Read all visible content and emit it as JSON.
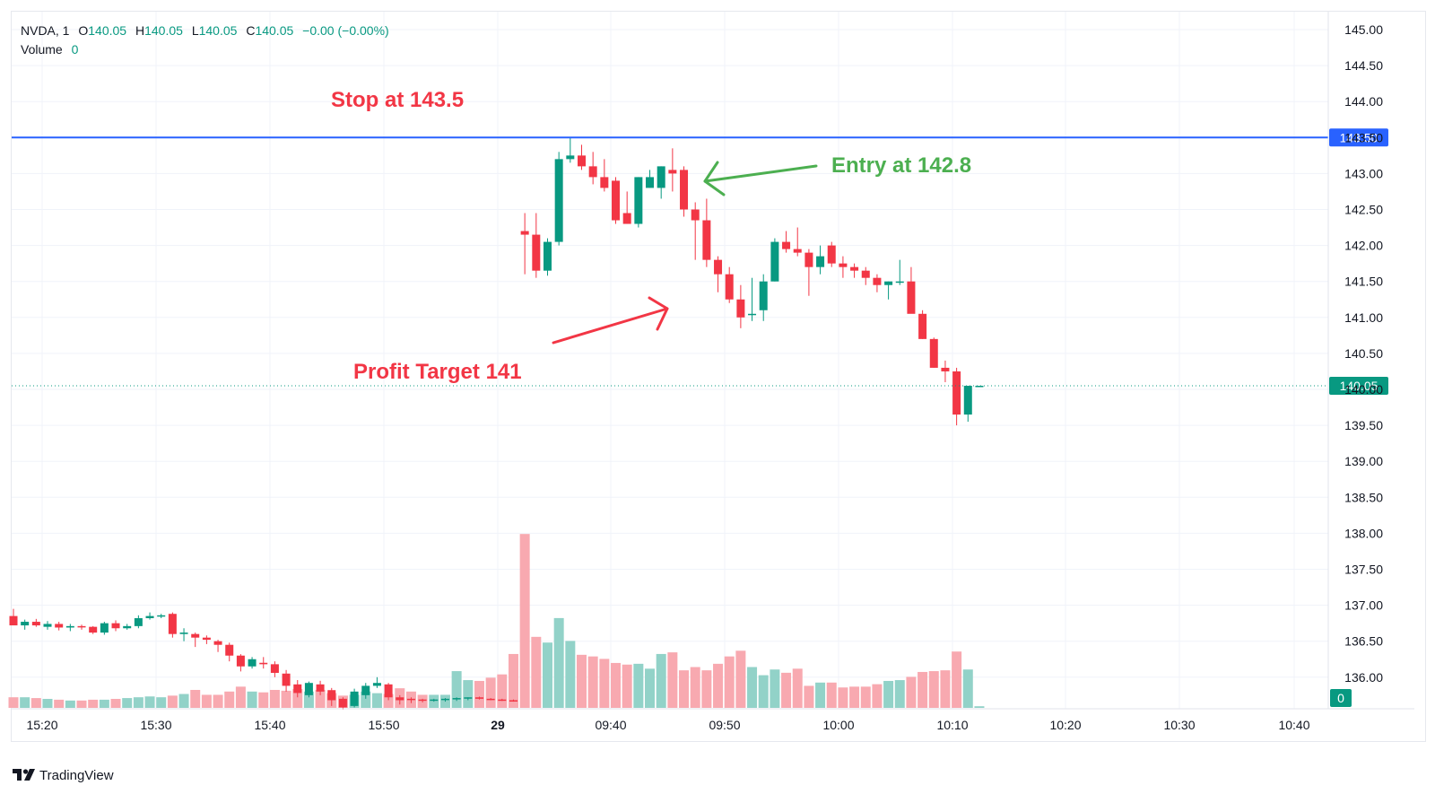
{
  "legend": {
    "symbol": "NVDA, 1",
    "o_label": "O",
    "o_value": "140.05",
    "h_label": "H",
    "h_value": "140.05",
    "l_label": "L",
    "l_value": "140.05",
    "c_label": "C",
    "c_value": "140.05",
    "change": "−0.00 (−0.00%)",
    "volume_label": "Volume",
    "volume_value": "0"
  },
  "annotations": {
    "stop": "Stop at 143.5",
    "entry": "Entry at 142.8",
    "target": "Profit Target 141"
  },
  "brand": {
    "name": "TradingView",
    "icon": "tradingview-logo-icon"
  },
  "colors": {
    "up": "#089981",
    "down": "#f23645",
    "vol_up": "#92d2c8",
    "vol_down": "#f8a9b0",
    "stop_line": "#2962ff",
    "price_line": "#089981",
    "note_red": "#f23645",
    "note_green": "#4caf50"
  },
  "chart_data": {
    "type": "candlestick",
    "symbol": "NVDA",
    "interval": "1",
    "y_ticks": [
      "145.00",
      "144.50",
      "144.00",
      "143.50",
      "143.00",
      "142.50",
      "142.00",
      "141.50",
      "141.00",
      "140.50",
      "140.00",
      "139.50",
      "139.00",
      "138.50",
      "138.00",
      "137.50",
      "137.00",
      "136.50",
      "136.00"
    ],
    "x_ticks": [
      "15:20",
      "15:30",
      "15:40",
      "15:50",
      "29",
      "09:40",
      "09:50",
      "10:00",
      "10:10",
      "10:20",
      "10:30",
      "10:40"
    ],
    "ylim": [
      135.6,
      145.3
    ],
    "stop_level": 143.5,
    "stop_label": "143.50",
    "last_price": 140.05,
    "last_label": "140.05",
    "volume_badge": "0",
    "grid": true,
    "candles": [
      {
        "o": 136.85,
        "h": 136.95,
        "l": 136.72,
        "c": 136.72,
        "v": 1.3
      },
      {
        "o": 136.72,
        "h": 136.8,
        "l": 136.66,
        "c": 136.77,
        "v": 1.3
      },
      {
        "o": 136.77,
        "h": 136.81,
        "l": 136.7,
        "c": 136.72,
        "v": 1.2
      },
      {
        "o": 136.7,
        "h": 136.78,
        "l": 136.66,
        "c": 136.74,
        "v": 1.1
      },
      {
        "o": 136.74,
        "h": 136.77,
        "l": 136.65,
        "c": 136.69,
        "v": 1.0
      },
      {
        "o": 136.69,
        "h": 136.74,
        "l": 136.64,
        "c": 136.71,
        "v": 0.9
      },
      {
        "o": 136.71,
        "h": 136.73,
        "l": 136.66,
        "c": 136.7,
        "v": 0.9
      },
      {
        "o": 136.7,
        "h": 136.71,
        "l": 136.6,
        "c": 136.62,
        "v": 1.0
      },
      {
        "o": 136.62,
        "h": 136.77,
        "l": 136.59,
        "c": 136.75,
        "v": 1.0
      },
      {
        "o": 136.75,
        "h": 136.79,
        "l": 136.64,
        "c": 136.68,
        "v": 1.1
      },
      {
        "o": 136.68,
        "h": 136.74,
        "l": 136.66,
        "c": 136.71,
        "v": 1.2
      },
      {
        "o": 136.71,
        "h": 136.86,
        "l": 136.68,
        "c": 136.82,
        "v": 1.3
      },
      {
        "o": 136.82,
        "h": 136.9,
        "l": 136.8,
        "c": 136.85,
        "v": 1.4
      },
      {
        "o": 136.85,
        "h": 136.88,
        "l": 136.82,
        "c": 136.86,
        "v": 1.3
      },
      {
        "o": 136.88,
        "h": 136.9,
        "l": 136.55,
        "c": 136.6,
        "v": 1.5
      },
      {
        "o": 136.6,
        "h": 136.68,
        "l": 136.5,
        "c": 136.62,
        "v": 1.7
      },
      {
        "o": 136.6,
        "h": 136.62,
        "l": 136.42,
        "c": 136.55,
        "v": 2.2
      },
      {
        "o": 136.55,
        "h": 136.58,
        "l": 136.46,
        "c": 136.52,
        "v": 1.6
      },
      {
        "o": 136.5,
        "h": 136.52,
        "l": 136.35,
        "c": 136.45,
        "v": 1.6
      },
      {
        "o": 136.45,
        "h": 136.48,
        "l": 136.22,
        "c": 136.3,
        "v": 2.0
      },
      {
        "o": 136.3,
        "h": 136.32,
        "l": 136.08,
        "c": 136.15,
        "v": 2.6
      },
      {
        "o": 136.15,
        "h": 136.28,
        "l": 136.12,
        "c": 136.25,
        "v": 2.0
      },
      {
        "o": 136.2,
        "h": 136.28,
        "l": 136.12,
        "c": 136.18,
        "v": 1.9
      },
      {
        "o": 136.18,
        "h": 136.22,
        "l": 136.0,
        "c": 136.06,
        "v": 2.2
      },
      {
        "o": 136.05,
        "h": 136.1,
        "l": 135.8,
        "c": 135.88,
        "v": 2.1
      },
      {
        "o": 135.9,
        "h": 135.96,
        "l": 135.72,
        "c": 135.78,
        "v": 2.3
      },
      {
        "o": 135.75,
        "h": 135.94,
        "l": 135.72,
        "c": 135.92,
        "v": 2.0
      },
      {
        "o": 135.9,
        "h": 135.95,
        "l": 135.75,
        "c": 135.8,
        "v": 2.2
      },
      {
        "o": 135.82,
        "h": 135.85,
        "l": 135.6,
        "c": 135.68,
        "v": 1.8
      },
      {
        "o": 135.7,
        "h": 135.72,
        "l": 135.55,
        "c": 135.58,
        "v": 1.5
      },
      {
        "o": 135.6,
        "h": 135.84,
        "l": 135.58,
        "c": 135.8,
        "v": 1.6
      },
      {
        "o": 135.75,
        "h": 135.92,
        "l": 135.7,
        "c": 135.88,
        "v": 2.0
      },
      {
        "o": 135.88,
        "h": 136.0,
        "l": 135.85,
        "c": 135.92,
        "v": 1.8
      },
      {
        "o": 135.9,
        "h": 135.92,
        "l": 135.68,
        "c": 135.72,
        "v": 1.7
      },
      {
        "o": 135.72,
        "h": 135.75,
        "l": 135.62,
        "c": 135.68,
        "v": 2.4
      },
      {
        "o": 135.7,
        "h": 135.72,
        "l": 135.64,
        "c": 135.69,
        "v": 2.0
      },
      {
        "o": 135.69,
        "h": 135.7,
        "l": 135.65,
        "c": 135.68,
        "v": 1.6
      },
      {
        "o": 135.68,
        "h": 135.7,
        "l": 135.66,
        "c": 135.69,
        "v": 1.6
      },
      {
        "o": 135.69,
        "h": 135.71,
        "l": 135.66,
        "c": 135.7,
        "v": 1.6
      },
      {
        "o": 135.7,
        "h": 135.72,
        "l": 135.67,
        "c": 135.71,
        "v": 4.5
      },
      {
        "o": 135.71,
        "h": 135.72,
        "l": 135.68,
        "c": 135.72,
        "v": 3.4
      },
      {
        "o": 135.72,
        "h": 135.73,
        "l": 135.69,
        "c": 135.7,
        "v": 3.3
      },
      {
        "o": 135.7,
        "h": 135.71,
        "l": 135.68,
        "c": 135.69,
        "v": 3.7
      },
      {
        "o": 135.69,
        "h": 135.7,
        "l": 135.67,
        "c": 135.68,
        "v": 4.1
      },
      {
        "o": 135.68,
        "h": 135.69,
        "l": 135.66,
        "c": 135.67,
        "v": 6.6
      },
      {
        "o": 142.2,
        "h": 142.45,
        "l": 141.6,
        "c": 142.15,
        "v": 21.3
      },
      {
        "o": 142.15,
        "h": 142.45,
        "l": 141.55,
        "c": 141.65,
        "v": 8.7
      },
      {
        "o": 141.65,
        "h": 142.1,
        "l": 141.58,
        "c": 142.05,
        "v": 8.0
      },
      {
        "o": 142.05,
        "h": 143.3,
        "l": 142.0,
        "c": 143.2,
        "v": 11.0
      },
      {
        "o": 143.2,
        "h": 143.5,
        "l": 143.15,
        "c": 143.25,
        "v": 8.2
      },
      {
        "o": 143.25,
        "h": 143.4,
        "l": 143.05,
        "c": 143.1,
        "v": 6.5
      },
      {
        "o": 143.1,
        "h": 143.3,
        "l": 142.85,
        "c": 142.95,
        "v": 6.3
      },
      {
        "o": 142.95,
        "h": 143.2,
        "l": 142.75,
        "c": 142.8,
        "v": 6.0
      },
      {
        "o": 142.9,
        "h": 142.95,
        "l": 142.3,
        "c": 142.35,
        "v": 5.5
      },
      {
        "o": 142.45,
        "h": 142.75,
        "l": 142.3,
        "c": 142.3,
        "v": 5.3
      },
      {
        "o": 142.3,
        "h": 142.95,
        "l": 142.25,
        "c": 142.95,
        "v": 5.4
      },
      {
        "o": 142.8,
        "h": 143.05,
        "l": 142.8,
        "c": 142.95,
        "v": 4.8
      },
      {
        "o": 142.8,
        "h": 143.1,
        "l": 142.65,
        "c": 143.1,
        "v": 6.6
      },
      {
        "o": 143.05,
        "h": 143.35,
        "l": 142.75,
        "c": 143.0,
        "v": 6.8
      },
      {
        "o": 143.05,
        "h": 143.1,
        "l": 142.4,
        "c": 142.5,
        "v": 4.6
      },
      {
        "o": 142.5,
        "h": 142.6,
        "l": 141.8,
        "c": 142.35,
        "v": 5.0
      },
      {
        "o": 142.35,
        "h": 142.65,
        "l": 141.7,
        "c": 141.8,
        "v": 4.6
      },
      {
        "o": 141.8,
        "h": 141.85,
        "l": 141.35,
        "c": 141.6,
        "v": 5.4
      },
      {
        "o": 141.6,
        "h": 141.7,
        "l": 141.2,
        "c": 141.25,
        "v": 6.3
      },
      {
        "o": 141.25,
        "h": 141.45,
        "l": 140.85,
        "c": 141.0,
        "v": 7.0
      },
      {
        "o": 141.05,
        "h": 141.55,
        "l": 140.95,
        "c": 141.05,
        "v": 5.0
      },
      {
        "o": 141.1,
        "h": 141.6,
        "l": 140.95,
        "c": 141.5,
        "v": 4.0
      },
      {
        "o": 141.5,
        "h": 142.1,
        "l": 141.5,
        "c": 142.05,
        "v": 4.7
      },
      {
        "o": 142.05,
        "h": 142.2,
        "l": 141.9,
        "c": 141.95,
        "v": 4.3
      },
      {
        "o": 141.95,
        "h": 142.25,
        "l": 141.85,
        "c": 141.9,
        "v": 4.8
      },
      {
        "o": 141.9,
        "h": 141.95,
        "l": 141.3,
        "c": 141.7,
        "v": 2.7
      },
      {
        "o": 141.7,
        "h": 142.0,
        "l": 141.6,
        "c": 141.85,
        "v": 3.1
      },
      {
        "o": 142.0,
        "h": 142.05,
        "l": 141.7,
        "c": 141.75,
        "v": 3.1
      },
      {
        "o": 141.75,
        "h": 141.85,
        "l": 141.55,
        "c": 141.7,
        "v": 2.5
      },
      {
        "o": 141.7,
        "h": 141.75,
        "l": 141.55,
        "c": 141.65,
        "v": 2.6
      },
      {
        "o": 141.65,
        "h": 141.7,
        "l": 141.45,
        "c": 141.55,
        "v": 2.6
      },
      {
        "o": 141.55,
        "h": 141.6,
        "l": 141.35,
        "c": 141.45,
        "v": 2.9
      },
      {
        "o": 141.45,
        "h": 141.5,
        "l": 141.25,
        "c": 141.5,
        "v": 3.3
      },
      {
        "o": 141.5,
        "h": 141.8,
        "l": 141.45,
        "c": 141.5,
        "v": 3.4
      },
      {
        "o": 141.5,
        "h": 141.7,
        "l": 141.1,
        "c": 141.05,
        "v": 3.8
      },
      {
        "o": 141.05,
        "h": 141.1,
        "l": 140.7,
        "c": 140.7,
        "v": 4.4
      },
      {
        "o": 140.7,
        "h": 140.72,
        "l": 140.3,
        "c": 140.3,
        "v": 4.5
      },
      {
        "o": 140.3,
        "h": 140.4,
        "l": 140.1,
        "c": 140.25,
        "v": 4.6
      },
      {
        "o": 140.25,
        "h": 140.3,
        "l": 139.5,
        "c": 139.65,
        "v": 6.9
      },
      {
        "o": 139.65,
        "h": 140.05,
        "l": 139.55,
        "c": 140.05,
        "v": 4.7
      },
      {
        "o": 140.05,
        "h": 140.05,
        "l": 140.05,
        "c": 140.05,
        "v": 0.2
      }
    ]
  }
}
